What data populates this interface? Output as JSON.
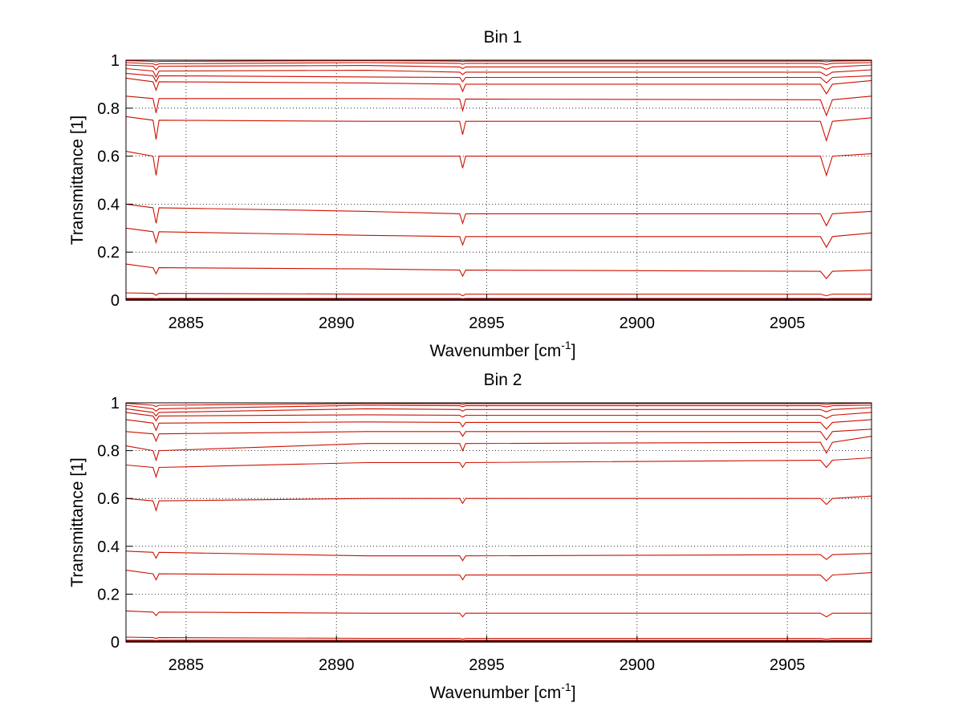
{
  "chart_data": [
    {
      "type": "line",
      "title": "Bin 1",
      "xlabel": "Wavenumber [cm",
      "xlabel_sup": "-1",
      "xlabel_end": "]",
      "ylabel": "Transmittance [1]",
      "xlim": [
        2883,
        2907.8
      ],
      "ylim": [
        0,
        1
      ],
      "xticks": [
        2885,
        2890,
        2895,
        2900,
        2905
      ],
      "xtick_labels": [
        "2885",
        "2890",
        "2895",
        "2900",
        "2905"
      ],
      "yticks": [
        0,
        0.2,
        0.4,
        0.6,
        0.8,
        1
      ],
      "ytick_labels": [
        "0",
        "0.2",
        "0.4",
        "0.6",
        "0.8",
        "1"
      ],
      "grid": true,
      "line_color": "#cc1100",
      "x": [
        2883,
        2883.9,
        2884,
        2884.1,
        2891,
        2894.1,
        2894.2,
        2894.3,
        2906.1,
        2906.3,
        2906.5,
        2907.8
      ],
      "series": [
        {
          "values": [
            0.998,
            0.995,
            0.993,
            0.995,
            0.998,
            0.996,
            0.994,
            0.996,
            0.996,
            0.993,
            0.996,
            0.998
          ]
        },
        {
          "values": [
            0.99,
            0.985,
            0.98,
            0.985,
            0.99,
            0.987,
            0.983,
            0.987,
            0.987,
            0.982,
            0.987,
            0.99
          ]
        },
        {
          "values": [
            0.98,
            0.975,
            0.96,
            0.975,
            0.978,
            0.972,
            0.965,
            0.972,
            0.972,
            0.962,
            0.972,
            0.98
          ]
        },
        {
          "values": [
            0.965,
            0.955,
            0.93,
            0.955,
            0.958,
            0.95,
            0.94,
            0.95,
            0.95,
            0.935,
            0.95,
            0.96
          ]
        },
        {
          "values": [
            0.945,
            0.935,
            0.91,
            0.935,
            0.93,
            0.928,
            0.91,
            0.928,
            0.928,
            0.905,
            0.928,
            0.935
          ]
        },
        {
          "values": [
            0.925,
            0.91,
            0.875,
            0.91,
            0.905,
            0.9,
            0.87,
            0.9,
            0.9,
            0.86,
            0.9,
            0.915
          ]
        },
        {
          "values": [
            0.85,
            0.84,
            0.78,
            0.84,
            0.84,
            0.838,
            0.79,
            0.838,
            0.835,
            0.77,
            0.835,
            0.85
          ]
        },
        {
          "values": [
            0.765,
            0.75,
            0.67,
            0.75,
            0.745,
            0.745,
            0.69,
            0.745,
            0.745,
            0.665,
            0.745,
            0.76
          ]
        },
        {
          "values": [
            0.62,
            0.6,
            0.52,
            0.6,
            0.6,
            0.6,
            0.55,
            0.6,
            0.6,
            0.52,
            0.6,
            0.61
          ]
        },
        {
          "values": [
            0.4,
            0.385,
            0.32,
            0.385,
            0.37,
            0.36,
            0.32,
            0.36,
            0.36,
            0.31,
            0.36,
            0.37
          ]
        },
        {
          "values": [
            0.3,
            0.285,
            0.24,
            0.285,
            0.27,
            0.265,
            0.23,
            0.265,
            0.265,
            0.22,
            0.265,
            0.28
          ]
        },
        {
          "values": [
            0.15,
            0.135,
            0.11,
            0.135,
            0.13,
            0.125,
            0.1,
            0.125,
            0.12,
            0.09,
            0.12,
            0.125
          ]
        },
        {
          "values": [
            0.03,
            0.028,
            0.02,
            0.028,
            0.025,
            0.025,
            0.018,
            0.025,
            0.025,
            0.018,
            0.025,
            0.025
          ]
        },
        {
          "values": [
            0.005,
            0.005,
            0.004,
            0.005,
            0.005,
            0.005,
            0.004,
            0.005,
            0.005,
            0.004,
            0.005,
            0.005
          ]
        },
        {
          "values": [
            0.001,
            0.001,
            0.001,
            0.001,
            0.001,
            0.001,
            0.001,
            0.001,
            0.001,
            0.001,
            0.001,
            0.001
          ]
        }
      ]
    },
    {
      "type": "line",
      "title": "Bin 2",
      "xlabel": "Wavenumber [cm",
      "xlabel_sup": "-1",
      "xlabel_end": "]",
      "ylabel": "Transmittance [1]",
      "xlim": [
        2883,
        2907.8
      ],
      "ylim": [
        0,
        1
      ],
      "xticks": [
        2885,
        2890,
        2895,
        2900,
        2905
      ],
      "xtick_labels": [
        "2885",
        "2890",
        "2895",
        "2900",
        "2905"
      ],
      "yticks": [
        0,
        0.2,
        0.4,
        0.6,
        0.8,
        1
      ],
      "ytick_labels": [
        "0",
        "0.2",
        "0.4",
        "0.6",
        "0.8",
        "1"
      ],
      "grid": true,
      "line_color": "#cc1100",
      "x": [
        2883,
        2883.9,
        2884,
        2884.1,
        2891,
        2894.1,
        2894.2,
        2894.3,
        2906.1,
        2906.3,
        2906.5,
        2907.8
      ],
      "series": [
        {
          "values": [
            0.998,
            0.99,
            0.985,
            0.99,
            0.997,
            0.996,
            0.994,
            0.996,
            0.996,
            0.994,
            0.996,
            0.998
          ]
        },
        {
          "values": [
            0.99,
            0.975,
            0.965,
            0.975,
            0.99,
            0.988,
            0.984,
            0.988,
            0.988,
            0.983,
            0.988,
            0.99
          ]
        },
        {
          "values": [
            0.975,
            0.96,
            0.945,
            0.96,
            0.975,
            0.972,
            0.965,
            0.972,
            0.972,
            0.962,
            0.972,
            0.98
          ]
        },
        {
          "values": [
            0.96,
            0.945,
            0.925,
            0.945,
            0.95,
            0.948,
            0.94,
            0.948,
            0.948,
            0.935,
            0.948,
            0.96
          ]
        },
        {
          "values": [
            0.93,
            0.915,
            0.885,
            0.915,
            0.92,
            0.918,
            0.9,
            0.918,
            0.918,
            0.89,
            0.918,
            0.93
          ]
        },
        {
          "values": [
            0.88,
            0.87,
            0.84,
            0.87,
            0.88,
            0.88,
            0.86,
            0.88,
            0.88,
            0.845,
            0.88,
            0.89
          ]
        },
        {
          "values": [
            0.82,
            0.8,
            0.76,
            0.8,
            0.83,
            0.83,
            0.8,
            0.83,
            0.835,
            0.79,
            0.835,
            0.86
          ]
        },
        {
          "values": [
            0.74,
            0.73,
            0.69,
            0.73,
            0.75,
            0.75,
            0.73,
            0.75,
            0.76,
            0.73,
            0.76,
            0.77
          ]
        },
        {
          "values": [
            0.6,
            0.59,
            0.55,
            0.59,
            0.6,
            0.6,
            0.58,
            0.6,
            0.6,
            0.575,
            0.6,
            0.61
          ]
        },
        {
          "values": [
            0.38,
            0.375,
            0.35,
            0.375,
            0.36,
            0.36,
            0.34,
            0.36,
            0.365,
            0.345,
            0.365,
            0.37
          ]
        },
        {
          "values": [
            0.3,
            0.285,
            0.26,
            0.285,
            0.28,
            0.28,
            0.26,
            0.28,
            0.28,
            0.255,
            0.28,
            0.29
          ]
        },
        {
          "values": [
            0.13,
            0.125,
            0.11,
            0.125,
            0.12,
            0.12,
            0.105,
            0.12,
            0.12,
            0.105,
            0.12,
            0.12
          ]
        },
        {
          "values": [
            0.02,
            0.018,
            0.015,
            0.018,
            0.015,
            0.015,
            0.012,
            0.015,
            0.015,
            0.012,
            0.015,
            0.015
          ]
        },
        {
          "values": [
            0.005,
            0.005,
            0.004,
            0.005,
            0.005,
            0.005,
            0.004,
            0.005,
            0.005,
            0.004,
            0.005,
            0.005
          ]
        },
        {
          "values": [
            0.001,
            0.001,
            0.001,
            0.001,
            0.001,
            0.001,
            0.001,
            0.001,
            0.001,
            0.001,
            0.001,
            0.001
          ]
        }
      ]
    }
  ]
}
